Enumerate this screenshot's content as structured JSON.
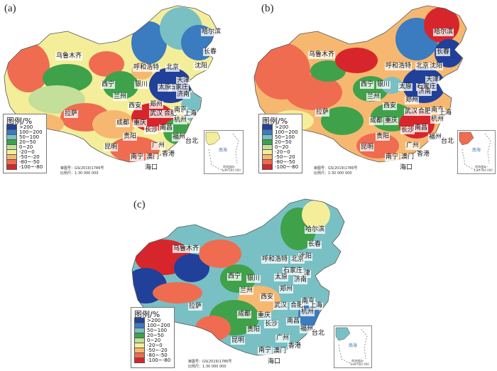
{
  "panels": [
    {
      "label": "(a)"
    },
    {
      "label": "(b)"
    },
    {
      "label": "(c)"
    }
  ],
  "cities": [
    {
      "id": "harbin",
      "name": "哈尔滨"
    },
    {
      "id": "changchun",
      "name": "长春"
    },
    {
      "id": "shenyang",
      "name": "沈阳"
    },
    {
      "id": "urumqi",
      "name": "乌鲁木齐"
    },
    {
      "id": "hohhot",
      "name": "呼和浩特"
    },
    {
      "id": "beijing",
      "name": "北京"
    },
    {
      "id": "tianjin",
      "name": "天津"
    },
    {
      "id": "shijiazhuang",
      "name": "石家庄"
    },
    {
      "id": "taiyuan",
      "name": "太原"
    },
    {
      "id": "jinan",
      "name": "济南"
    },
    {
      "id": "xining",
      "name": "西宁"
    },
    {
      "id": "yinchuan",
      "name": "银川"
    },
    {
      "id": "lanzhou",
      "name": "兰州"
    },
    {
      "id": "xian",
      "name": "西安"
    },
    {
      "id": "zhengzhou",
      "name": "郑州"
    },
    {
      "id": "lhasa",
      "name": "拉萨"
    },
    {
      "id": "chengdu",
      "name": "成都"
    },
    {
      "id": "chongqing",
      "name": "重庆"
    },
    {
      "id": "wuhan",
      "name": "武汉"
    },
    {
      "id": "hefei",
      "name": "合肥"
    },
    {
      "id": "nanjing",
      "name": "南京"
    },
    {
      "id": "shanghai",
      "name": "上海"
    },
    {
      "id": "hangzhou",
      "name": "杭州"
    },
    {
      "id": "changsha",
      "name": "长沙"
    },
    {
      "id": "nanchang",
      "name": "南昌"
    },
    {
      "id": "guiyang",
      "name": "贵阳"
    },
    {
      "id": "fuzhou",
      "name": "福州"
    },
    {
      "id": "taipei",
      "name": "台北"
    },
    {
      "id": "kunming",
      "name": "昆明"
    },
    {
      "id": "guangzhou",
      "name": "广州"
    },
    {
      "id": "nanning",
      "name": "南宁"
    },
    {
      "id": "macau",
      "name": "澳门"
    },
    {
      "id": "hongkong",
      "name": "香港"
    },
    {
      "id": "haikou",
      "name": "海口"
    }
  ],
  "legend": {
    "title": "图例/%",
    "classes": [
      {
        "label": ">200",
        "color": "#21409a"
      },
      {
        "label": "100~200",
        "color": "#3b7bbf"
      },
      {
        "label": "50~100",
        "color": "#79c0c4"
      },
      {
        "label": "20~50",
        "color": "#3fa24a"
      },
      {
        "label": "0~20",
        "color": "#c3df9a"
      },
      {
        "label": "-20~0",
        "color": "#f4ee9a"
      },
      {
        "label": "-50~-20",
        "color": "#f6b870"
      },
      {
        "label": "-80~-50",
        "color": "#ef6c50"
      },
      {
        "label": "-100~-80",
        "color": "#d7262b"
      }
    ]
  },
  "map_note": {
    "review_no": "审图号：GS(2019)1786号",
    "scale_a": "比例尺：1:30 000 000",
    "scale_b": "比例尺：1:30 000 000",
    "scale_c": "比例尺：1:30 000 000"
  },
  "inset": {
    "sea_label": "南海",
    "note": "南海诸岛",
    "scale": "1:30 000 000"
  }
}
